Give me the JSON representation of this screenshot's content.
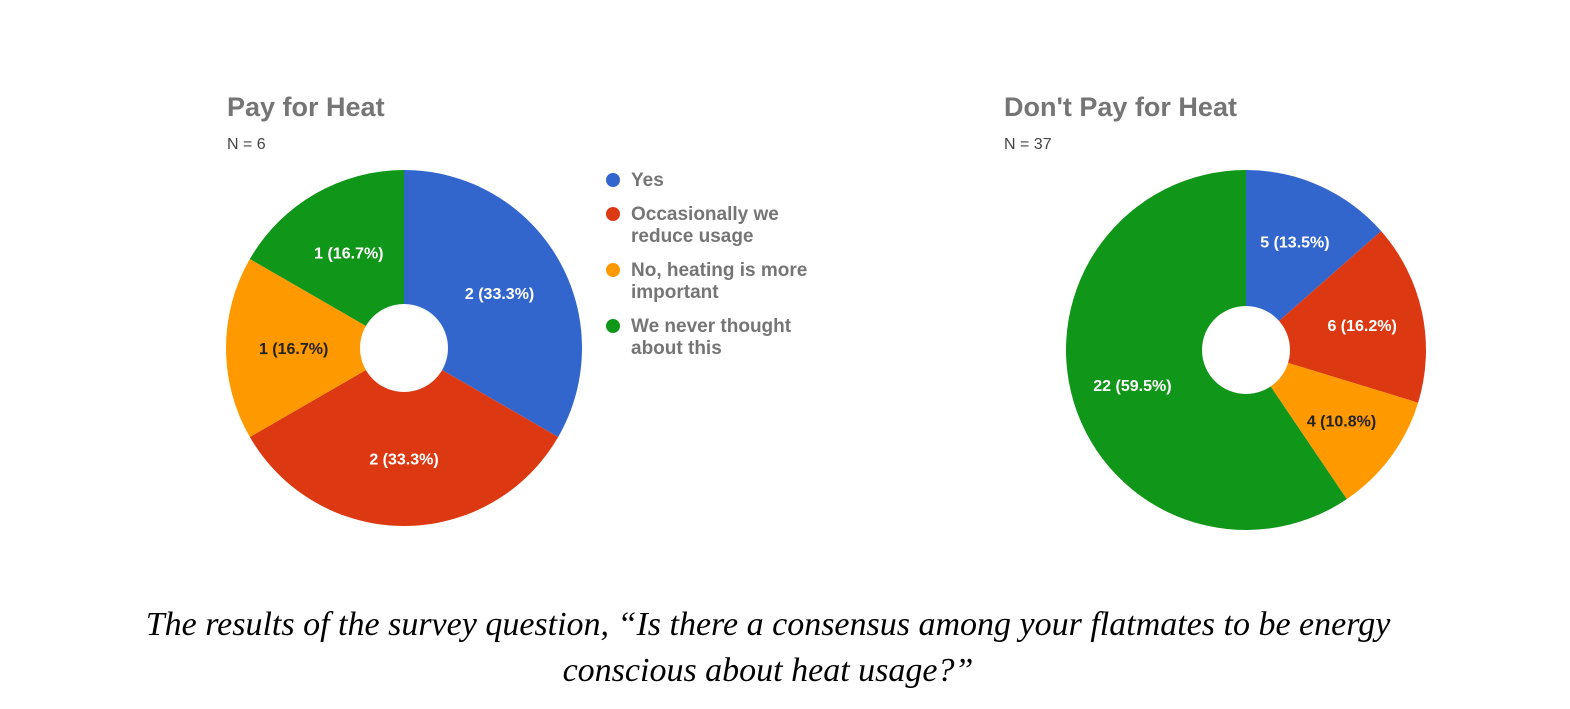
{
  "chart_data": [
    {
      "type": "pie",
      "title": "Pay for Heat",
      "subtitle": "N = 6",
      "categories": [
        "Yes",
        "Occasionally we reduce usage",
        "No, heating is more important",
        "We never thought about this"
      ],
      "values": [
        2,
        2,
        1,
        1
      ],
      "data_labels": [
        "2 (33.3%)",
        "2 (33.3%)",
        "1 (16.7%)",
        "1 (16.7%)"
      ],
      "colors": [
        "#3366cc",
        "#dc3912",
        "#ff9900",
        "#109618"
      ],
      "legend": "right"
    },
    {
      "type": "pie",
      "title": "Don't Pay for Heat",
      "subtitle": "N = 37",
      "categories": [
        "Yes",
        "Occasionally we reduce usage",
        "No, heating is more important",
        "We never thought about this"
      ],
      "values": [
        5,
        6,
        4,
        22
      ],
      "data_labels": [
        "5 (13.5%)",
        "6 (16.2%)",
        "4 (10.8%)",
        "22 (59.5%)"
      ],
      "colors": [
        "#3366cc",
        "#dc3912",
        "#ff9900",
        "#109618"
      ]
    }
  ],
  "legend": {
    "items": [
      {
        "label": "Yes",
        "color": "#3366cc"
      },
      {
        "label": "Occasionally we reduce usage",
        "color": "#dc3912"
      },
      {
        "label": "No, heating is more important",
        "color": "#ff9900"
      },
      {
        "label": "We never thought about this",
        "color": "#109618"
      }
    ]
  },
  "caption": {
    "line1": "The results of the survey question, “Is there a consensus among your flatmates to be energy",
    "line2": "conscious about heat usage?”"
  }
}
